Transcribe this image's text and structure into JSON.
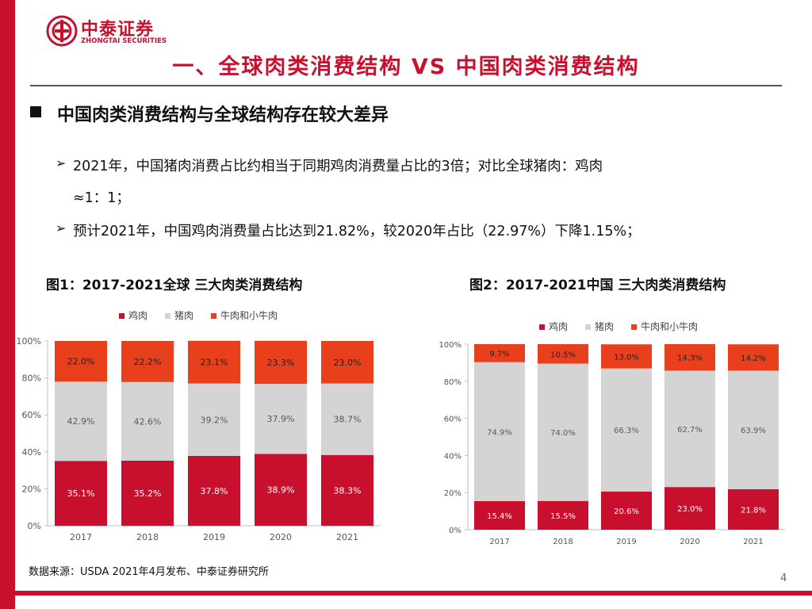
{
  "brand": {
    "name_cn": "中泰证券",
    "name_en": "ZHONGTAI SECURITIES"
  },
  "page_title": "一、全球肉类消费结构 VS 中国肉类消费结构",
  "section_heading": "中国肉类消费结构与全球结构存在较大差异",
  "bullets": [
    {
      "mark": "➢",
      "line1": "2021年，中国猪肉消费占比约相当于同期鸡肉消费量占比的3倍；对比全球猪肉：鸡肉",
      "line2": "≈1：1；"
    },
    {
      "mark": "➢",
      "line1": "预计2021年，中国鸡肉消费量占比达到21.82%，较2020年占比（22.97%）下降1.15%；"
    }
  ],
  "chart_data": [
    {
      "type": "bar",
      "stacked": true,
      "title": "图1：2017-2021全球 三大肉类消费结构",
      "categories": [
        "2017",
        "2018",
        "2019",
        "2020",
        "2021"
      ],
      "series": [
        {
          "name": "鸡肉",
          "color": "#c8102e",
          "values": [
            35.1,
            35.2,
            37.8,
            38.9,
            38.3
          ],
          "labels": [
            "35.1%",
            "35.2%",
            "37.8%",
            "38.9%",
            "38.3%"
          ]
        },
        {
          "name": "猪肉",
          "color": "#d4d4d4",
          "values": [
            42.9,
            42.6,
            39.2,
            37.9,
            38.7
          ],
          "labels": [
            "42.9%",
            "42.6%",
            "39.2%",
            "37.9%",
            "38.7%"
          ]
        },
        {
          "name": "牛肉和小牛肉",
          "color": "#e8401c",
          "values": [
            22.0,
            22.2,
            23.1,
            23.3,
            23.0
          ],
          "labels": [
            "22.0%",
            "22.2%",
            "23.1%",
            "23.3%",
            "23.0%"
          ]
        }
      ],
      "y_ticks": [
        "0%",
        "20%",
        "40%",
        "60%",
        "80%",
        "100%"
      ],
      "ylim": [
        0,
        100
      ],
      "legend": "top"
    },
    {
      "type": "bar",
      "stacked": true,
      "title": "图2：2017-2021中国 三大肉类消费结构",
      "categories": [
        "2017",
        "2018",
        "2019",
        "2020",
        "2021"
      ],
      "series": [
        {
          "name": "鸡肉",
          "color": "#c8102e",
          "values": [
            15.4,
            15.5,
            20.6,
            23.0,
            21.8
          ],
          "labels": [
            "15.4%",
            "15.5%",
            "20.6%",
            "23.0%",
            "21.8%"
          ]
        },
        {
          "name": "猪肉",
          "color": "#d4d4d4",
          "values": [
            74.9,
            74.0,
            66.3,
            62.7,
            63.9
          ],
          "labels": [
            "74.9%",
            "74.0%",
            "66.3%",
            "62.7%",
            "63.9%"
          ]
        },
        {
          "name": "牛肉和小牛肉",
          "color": "#e8401c",
          "values": [
            9.7,
            10.5,
            13.0,
            14.3,
            14.2
          ],
          "labels": [
            "9.7%",
            "10.5%",
            "13.0%",
            "14.3%",
            "14.2%"
          ]
        }
      ],
      "y_ticks": [
        "0%",
        "20%",
        "40%",
        "60%",
        "80%",
        "100%"
      ],
      "ylim": [
        0,
        100
      ],
      "legend": "top"
    }
  ],
  "source": "数据来源：USDA 2021年4月发布、中泰证券研究所",
  "page_number": "4"
}
